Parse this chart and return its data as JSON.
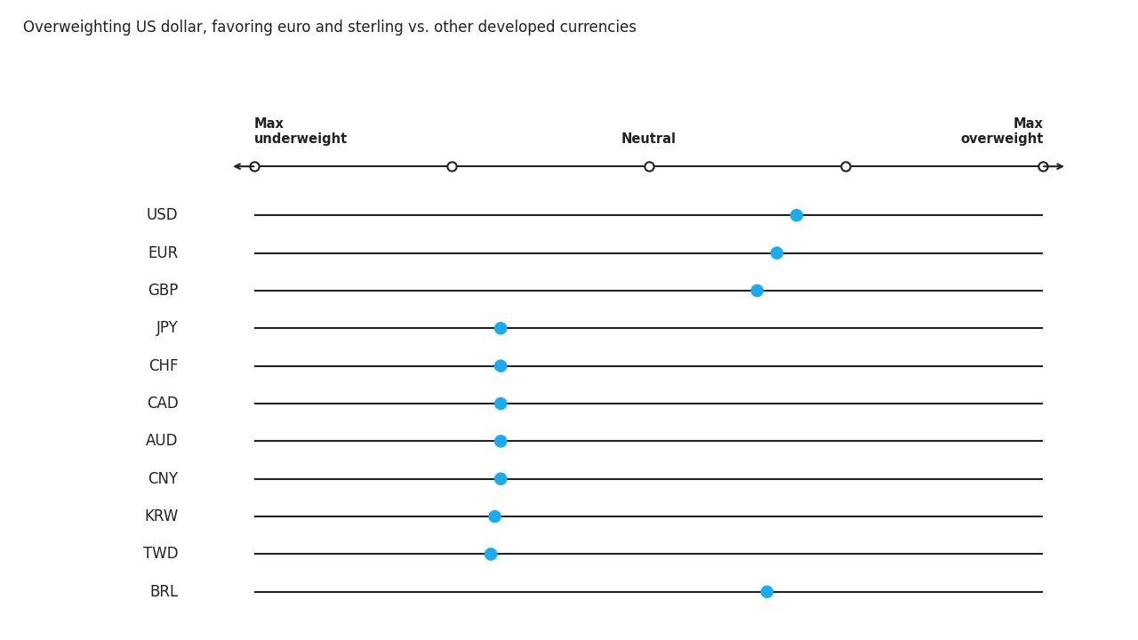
{
  "title": "Overweighting US dollar, favoring euro and sterling vs. other developed currencies",
  "title_fontsize": 12,
  "scale_min": -2,
  "scale_max": 2,
  "tick_positions": [
    -2,
    -1,
    0,
    1,
    2
  ],
  "currencies": [
    "USD",
    "EUR",
    "GBP",
    "JPY",
    "CHF",
    "CAD",
    "AUD",
    "CNY",
    "KRW",
    "TWD",
    "BRL"
  ],
  "positions": [
    0.75,
    0.65,
    0.55,
    -0.75,
    -0.75,
    -0.75,
    -0.75,
    -0.75,
    -0.78,
    -0.8,
    0.6
  ],
  "dot_color": "#1AABF0",
  "dot_size": 110,
  "line_color": "#222222",
  "line_width": 1.5,
  "background_color": "#ffffff",
  "label_fontsize": 12,
  "label_color": "#222222",
  "scale_label_fontsize": 10.5,
  "scale_label_color": "#222222"
}
